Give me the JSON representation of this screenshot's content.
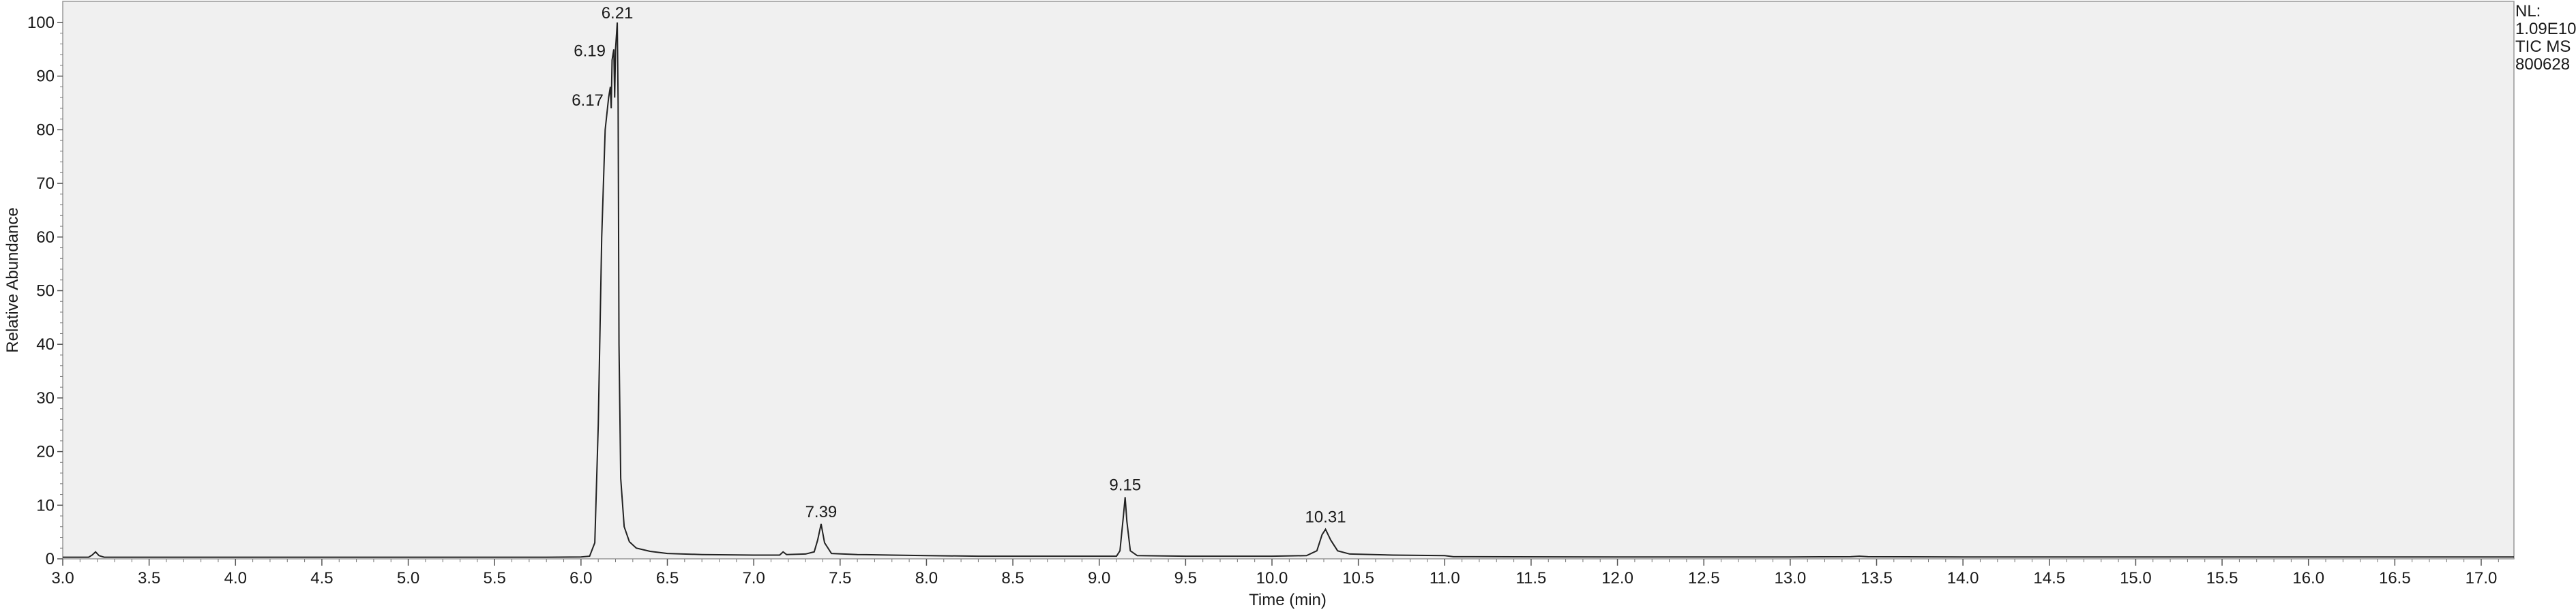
{
  "chart_data": {
    "type": "line",
    "title": "",
    "xlabel": "Time (min)",
    "ylabel": "Relative Abundance",
    "xlim": [
      3.0,
      17.2
    ],
    "ylim": [
      0,
      100
    ],
    "grid": false,
    "xticks": [
      "3.0",
      "3.5",
      "4.0",
      "4.5",
      "5.0",
      "5.5",
      "6.0",
      "6.5",
      "7.0",
      "7.5",
      "8.0",
      "8.5",
      "9.0",
      "9.5",
      "10.0",
      "10.5",
      "11.0",
      "11.5",
      "12.0",
      "12.5",
      "13.0",
      "13.5",
      "14.0",
      "14.5",
      "15.0",
      "15.5",
      "16.0",
      "16.5",
      "17.0"
    ],
    "yticks": [
      "0",
      "10",
      "20",
      "30",
      "40",
      "50",
      "60",
      "70",
      "80",
      "90",
      "100"
    ],
    "info_lines": [
      "NL:",
      "1.09E10",
      "TIC  MS",
      "800628"
    ],
    "peak_labels": [
      {
        "text": "6.21",
        "x": 6.21,
        "y": 99.5
      },
      {
        "text": "6.19",
        "x": 6.19,
        "y": 94.5
      },
      {
        "text": "6.17",
        "x": 6.17,
        "y": 85.5
      },
      {
        "text": "7.39",
        "x": 7.39,
        "y": 6.5
      },
      {
        "text": "9.15",
        "x": 9.15,
        "y": 11.5
      },
      {
        "text": "10.31",
        "x": 10.31,
        "y": 5.5
      }
    ],
    "series": [
      {
        "values": [
          [
            3.0,
            0.3
          ],
          [
            3.15,
            0.3
          ],
          [
            3.17,
            0.7
          ],
          [
            3.19,
            1.3
          ],
          [
            3.21,
            0.6
          ],
          [
            3.24,
            0.3
          ],
          [
            4.0,
            0.3
          ],
          [
            5.0,
            0.3
          ],
          [
            5.8,
            0.3
          ],
          [
            6.0,
            0.35
          ],
          [
            6.05,
            0.5
          ],
          [
            6.08,
            3
          ],
          [
            6.1,
            25
          ],
          [
            6.12,
            60
          ],
          [
            6.14,
            80
          ],
          [
            6.16,
            86
          ],
          [
            6.17,
            88
          ],
          [
            6.175,
            84
          ],
          [
            6.18,
            93
          ],
          [
            6.19,
            95
          ],
          [
            6.195,
            86
          ],
          [
            6.2,
            95
          ],
          [
            6.21,
            100
          ],
          [
            6.215,
            85
          ],
          [
            6.22,
            40
          ],
          [
            6.23,
            15
          ],
          [
            6.25,
            6
          ],
          [
            6.28,
            3.2
          ],
          [
            6.32,
            2.0
          ],
          [
            6.4,
            1.4
          ],
          [
            6.5,
            1.0
          ],
          [
            6.7,
            0.8
          ],
          [
            7.0,
            0.7
          ],
          [
            7.15,
            0.7
          ],
          [
            7.17,
            1.3
          ],
          [
            7.19,
            0.8
          ],
          [
            7.3,
            0.9
          ],
          [
            7.35,
            1.3
          ],
          [
            7.37,
            3.5
          ],
          [
            7.39,
            6.5
          ],
          [
            7.41,
            3.0
          ],
          [
            7.45,
            1.0
          ],
          [
            7.6,
            0.8
          ],
          [
            7.8,
            0.7
          ],
          [
            8.0,
            0.6
          ],
          [
            8.3,
            0.5
          ],
          [
            8.7,
            0.5
          ],
          [
            9.0,
            0.5
          ],
          [
            9.1,
            0.5
          ],
          [
            9.12,
            1.5
          ],
          [
            9.14,
            8
          ],
          [
            9.15,
            11.5
          ],
          [
            9.16,
            7
          ],
          [
            9.18,
            1.5
          ],
          [
            9.22,
            0.6
          ],
          [
            9.5,
            0.5
          ],
          [
            10.0,
            0.5
          ],
          [
            10.2,
            0.6
          ],
          [
            10.26,
            1.5
          ],
          [
            10.29,
            4.5
          ],
          [
            10.31,
            5.5
          ],
          [
            10.34,
            3.5
          ],
          [
            10.38,
            1.5
          ],
          [
            10.45,
            0.9
          ],
          [
            10.7,
            0.7
          ],
          [
            11.0,
            0.6
          ],
          [
            11.05,
            0.4
          ],
          [
            12.0,
            0.35
          ],
          [
            13.0,
            0.35
          ],
          [
            13.35,
            0.4
          ],
          [
            13.4,
            0.5
          ],
          [
            13.45,
            0.4
          ],
          [
            14.0,
            0.35
          ],
          [
            15.0,
            0.35
          ],
          [
            16.0,
            0.35
          ],
          [
            17.0,
            0.35
          ],
          [
            17.2,
            0.35
          ]
        ]
      }
    ]
  }
}
